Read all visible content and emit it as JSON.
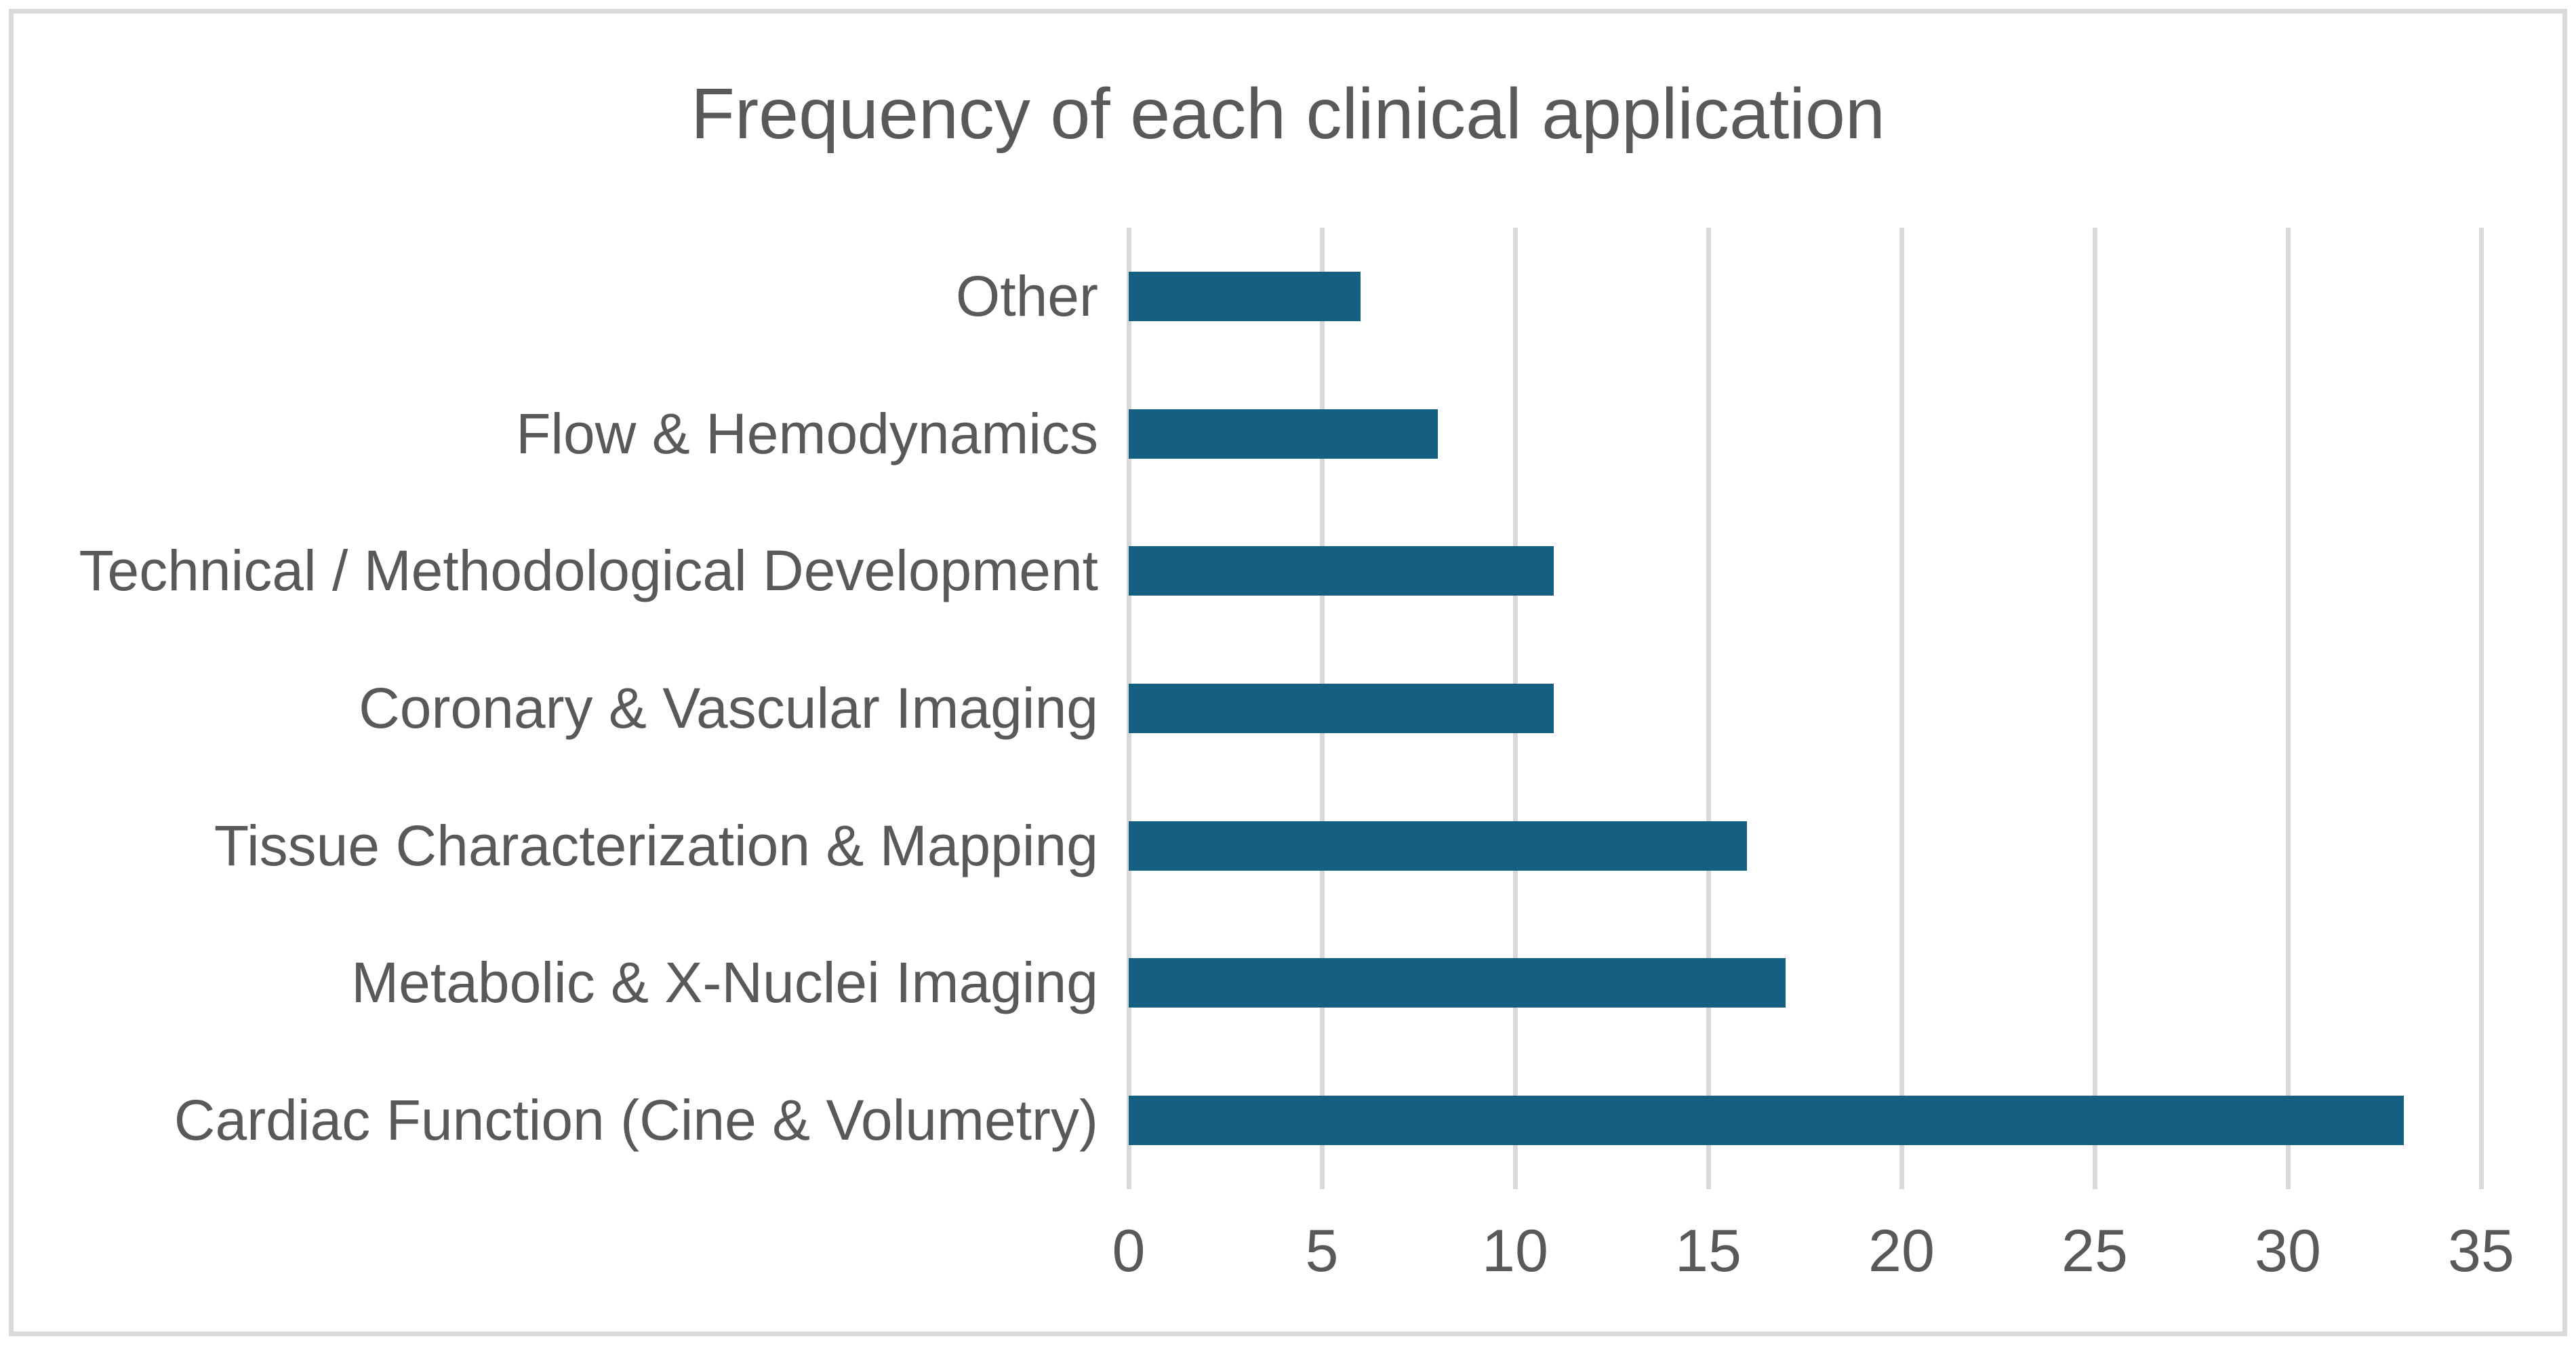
{
  "title": "Frequency of each clinical application",
  "chart_data": {
    "type": "bar",
    "orientation": "horizontal",
    "title": "Frequency of each clinical application",
    "categories": [
      "Other",
      "Flow & Hemodynamics",
      "Technical / Methodological Development",
      "Coronary & Vascular Imaging",
      "Tissue Characterization & Mapping",
      "Metabolic & X-Nuclei Imaging",
      "Cardiac Function (Cine & Volumetry)"
    ],
    "values": [
      6,
      8,
      11,
      11,
      16,
      17,
      33
    ],
    "xlabel": "",
    "ylabel": "",
    "xlim": [
      0,
      35
    ],
    "x_ticks": [
      0,
      5,
      10,
      15,
      20,
      25,
      30,
      35
    ],
    "grid": true,
    "legend": false,
    "colors": {
      "bar": "#156082",
      "gridline": "#D9D9D9",
      "text": "#595959",
      "frame_border": "#D9D9D9",
      "background": "#FFFFFF"
    }
  }
}
